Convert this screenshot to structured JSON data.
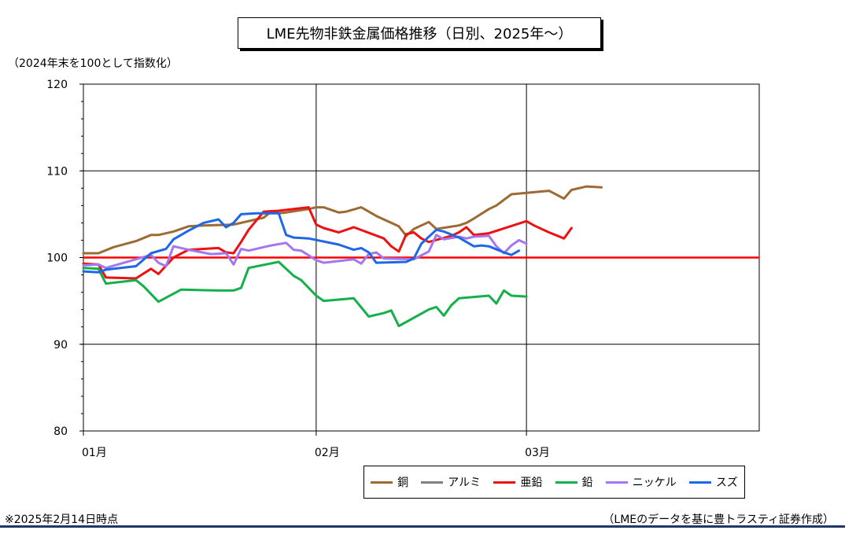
{
  "chart_data": {
    "type": "line",
    "title": "LME先物非鉄金属価格推移（日別、2025年～）",
    "ylabel_note": "（2024年末を100として指数化）",
    "ylim": [
      80,
      120
    ],
    "yticks": [
      "80",
      "90",
      "100",
      "110",
      "120"
    ],
    "xticks": [
      "01月",
      "02月",
      "03月"
    ],
    "x_range_days": [
      0,
      90
    ],
    "reference_line": {
      "y": 100,
      "color": "#ff0000"
    },
    "grid": true,
    "legend_position": "bottom",
    "series": [
      {
        "name": "銅",
        "color": "#9c6a33",
        "points": [
          [
            0,
            100.5
          ],
          [
            2,
            100.5
          ],
          [
            4,
            101.2
          ],
          [
            7,
            101.9
          ],
          [
            9,
            102.6
          ],
          [
            10,
            102.6
          ],
          [
            12,
            103
          ],
          [
            14,
            103.6
          ],
          [
            16,
            103.7
          ],
          [
            20,
            103.8
          ],
          [
            23,
            104.4
          ],
          [
            24,
            104.6
          ],
          [
            25,
            105.3
          ],
          [
            26,
            105.1
          ],
          [
            27,
            105.2
          ],
          [
            30,
            105.6
          ],
          [
            31,
            105.8
          ],
          [
            32,
            105.8
          ],
          [
            34,
            105.2
          ],
          [
            35,
            105.3
          ],
          [
            37,
            105.8
          ],
          [
            39,
            104.8
          ],
          [
            42,
            103.6
          ],
          [
            43,
            102.5
          ],
          [
            44,
            103.3
          ],
          [
            46,
            104.1
          ],
          [
            47,
            103.3
          ],
          [
            50,
            103.7
          ],
          [
            51,
            104
          ],
          [
            52,
            104.5
          ],
          [
            54,
            105.6
          ],
          [
            55,
            106
          ],
          [
            57,
            107.3
          ],
          [
            62,
            107.7
          ],
          [
            64,
            106.8
          ],
          [
            65,
            107.8
          ],
          [
            67,
            108.2
          ],
          [
            69,
            108.1
          ]
        ]
      },
      {
        "name": "アルミ",
        "color": "#808080",
        "points": []
      },
      {
        "name": "亜鉛",
        "color": "#ee1111",
        "points": [
          [
            0,
            99.3
          ],
          [
            2,
            99.2
          ],
          [
            3,
            97.7
          ],
          [
            7,
            97.6
          ],
          [
            9,
            98.7
          ],
          [
            10,
            98.1
          ],
          [
            12,
            100
          ],
          [
            14,
            100.9
          ],
          [
            18,
            101.1
          ],
          [
            19,
            100.6
          ],
          [
            20,
            100.5
          ],
          [
            21,
            101.8
          ],
          [
            22,
            103.2
          ],
          [
            24,
            105.3
          ],
          [
            26,
            105.4
          ],
          [
            30,
            105.8
          ],
          [
            31,
            103.8
          ],
          [
            32,
            103.4
          ],
          [
            34,
            102.9
          ],
          [
            36,
            103.5
          ],
          [
            40,
            102.2
          ],
          [
            41,
            101.3
          ],
          [
            42,
            100.7
          ],
          [
            43,
            102.7
          ],
          [
            44,
            102.9
          ],
          [
            45,
            102.2
          ],
          [
            46,
            101.8
          ],
          [
            49,
            102.5
          ],
          [
            50,
            102.9
          ],
          [
            51,
            103.5
          ],
          [
            52,
            102.6
          ],
          [
            54,
            102.8
          ],
          [
            59,
            104.2
          ],
          [
            60,
            103.7
          ],
          [
            62,
            102.9
          ],
          [
            64,
            102.2
          ],
          [
            65,
            103.4
          ]
        ]
      },
      {
        "name": "鉛",
        "color": "#14b04a",
        "points": [
          [
            0,
            98.8
          ],
          [
            2,
            98.7
          ],
          [
            3,
            97
          ],
          [
            7,
            97.4
          ],
          [
            8,
            96.7
          ],
          [
            10,
            94.9
          ],
          [
            13,
            96.3
          ],
          [
            18,
            96.2
          ],
          [
            20,
            96.2
          ],
          [
            21,
            96.5
          ],
          [
            22,
            98.8
          ],
          [
            26,
            99.5
          ],
          [
            28,
            97.9
          ],
          [
            29,
            97.4
          ],
          [
            31,
            95.6
          ],
          [
            32,
            95
          ],
          [
            36,
            95.3
          ],
          [
            38,
            93.2
          ],
          [
            40,
            93.6
          ],
          [
            41,
            93.9
          ],
          [
            42,
            92.1
          ],
          [
            46,
            94
          ],
          [
            47,
            94.3
          ],
          [
            48,
            93.3
          ],
          [
            49,
            94.5
          ],
          [
            50,
            95.3
          ],
          [
            54,
            95.6
          ],
          [
            55,
            94.7
          ],
          [
            56,
            96.2
          ],
          [
            57,
            95.6
          ],
          [
            59,
            95.5
          ]
        ]
      },
      {
        "name": "ニッケル",
        "color": "#a477ee",
        "points": [
          [
            0,
            99.1
          ],
          [
            2,
            99.2
          ],
          [
            3,
            98.8
          ],
          [
            7,
            99.8
          ],
          [
            9,
            100.3
          ],
          [
            10,
            99.4
          ],
          [
            11,
            99
          ],
          [
            12,
            101.3
          ],
          [
            14,
            100.9
          ],
          [
            17,
            100.4
          ],
          [
            19,
            100.5
          ],
          [
            20,
            99.2
          ],
          [
            21,
            101
          ],
          [
            22,
            100.8
          ],
          [
            25,
            101.4
          ],
          [
            27,
            101.7
          ],
          [
            28,
            100.9
          ],
          [
            29,
            100.8
          ],
          [
            31,
            99.7
          ],
          [
            32,
            99.4
          ],
          [
            36,
            99.8
          ],
          [
            37,
            99.3
          ],
          [
            38,
            100.4
          ],
          [
            39,
            100.6
          ],
          [
            40,
            99.9
          ],
          [
            44,
            99.8
          ],
          [
            46,
            100.7
          ],
          [
            47,
            102.6
          ],
          [
            48,
            102.1
          ],
          [
            50,
            102.4
          ],
          [
            51,
            102.2
          ],
          [
            52,
            102.4
          ],
          [
            54,
            102.5
          ],
          [
            55,
            101.3
          ],
          [
            56,
            100.5
          ],
          [
            57,
            101.4
          ],
          [
            58,
            102
          ],
          [
            59,
            101.6
          ]
        ]
      },
      {
        "name": "スズ",
        "color": "#1e67e6",
        "points": [
          [
            0,
            98.4
          ],
          [
            2,
            98.3
          ],
          [
            3,
            98.6
          ],
          [
            7,
            99
          ],
          [
            9,
            100.5
          ],
          [
            11,
            101
          ],
          [
            12,
            102.1
          ],
          [
            14,
            103.1
          ],
          [
            16,
            104
          ],
          [
            18,
            104.4
          ],
          [
            19,
            103.5
          ],
          [
            20,
            104
          ],
          [
            21,
            105
          ],
          [
            23,
            105.1
          ],
          [
            26,
            105.1
          ],
          [
            27,
            102.6
          ],
          [
            28,
            102.3
          ],
          [
            30,
            102.2
          ],
          [
            34,
            101.5
          ],
          [
            36,
            100.9
          ],
          [
            37,
            101.1
          ],
          [
            38,
            100.6
          ],
          [
            39,
            99.4
          ],
          [
            43,
            99.5
          ],
          [
            44,
            99.9
          ],
          [
            45,
            101.6
          ],
          [
            47,
            103.2
          ],
          [
            48,
            103
          ],
          [
            50,
            102.3
          ],
          [
            52,
            101.3
          ],
          [
            53,
            101.4
          ],
          [
            54,
            101.3
          ],
          [
            56,
            100.6
          ],
          [
            57,
            100.3
          ],
          [
            58,
            100.8
          ]
        ]
      }
    ]
  },
  "footnote_left": "※2025年2月14日時点",
  "footnote_right": "（LMEのデータを基に豊トラスティ証券作成）"
}
